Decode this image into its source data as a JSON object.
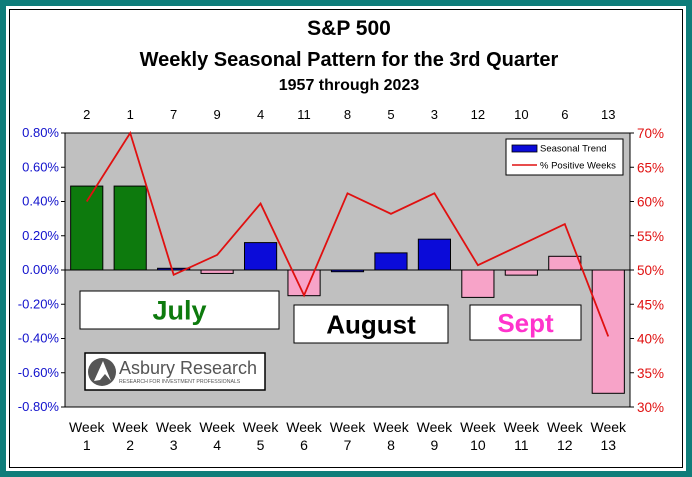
{
  "chart_data": {
    "type": "bar",
    "title": "S&P 500",
    "subtitle": "Weekly Seasonal Pattern for the 3rd Quarter",
    "subtitle2": "1957 through 2023",
    "categories": [
      "Week 1",
      "Week 2",
      "Week 3",
      "Week 4",
      "Week 5",
      "Week 6",
      "Week 7",
      "Week 8",
      "Week 9",
      "Week 10",
      "Week 11",
      "Week 12",
      "Week 13"
    ],
    "week_word": "Week",
    "week_numbers": [
      "1",
      "2",
      "3",
      "4",
      "5",
      "6",
      "7",
      "8",
      "9",
      "10",
      "11",
      "12",
      "13"
    ],
    "rank_labels": [
      "2",
      "1",
      "7",
      "9",
      "4",
      "11",
      "8",
      "5",
      "3",
      "12",
      "10",
      "6",
      "13"
    ],
    "series": [
      {
        "name": "Seasonal Trend",
        "axis": "left",
        "values": [
          0.49,
          0.49,
          0.01,
          -0.02,
          0.16,
          -0.15,
          -0.01,
          0.1,
          0.18,
          -0.16,
          -0.03,
          0.08,
          -0.72
        ]
      },
      {
        "name": "% Positive Weeks",
        "axis": "right",
        "type": "line",
        "values": [
          60,
          70,
          49.3,
          52.2,
          59.7,
          46.3,
          61.2,
          58.2,
          61.2,
          50.7,
          53.7,
          56.7,
          40.3
        ]
      }
    ],
    "bar_colors": [
      "#0d7a0d",
      "#0d7a0d",
      "#0b0bd9",
      "#f7a3c8",
      "#0b0bd9",
      "#f7a3c8",
      "#0b0bd9",
      "#0b0bd9",
      "#0b0bd9",
      "#f7a3c8",
      "#f7a3c8",
      "#f7a3c8",
      "#f7a3c8"
    ],
    "line_color": "#e01010",
    "plot_background": "#c0c0c0",
    "left_axis": {
      "ylim": [
        -0.8,
        0.8
      ],
      "ticks": [
        0.8,
        0.6,
        0.4,
        0.2,
        0.0,
        -0.2,
        -0.4,
        -0.6,
        -0.8
      ],
      "tick_labels": [
        "0.80%",
        "0.60%",
        "0.40%",
        "0.20%",
        "0.00%",
        "-0.20%",
        "-0.40%",
        "-0.60%",
        "-0.80%"
      ],
      "color": "#1111cc"
    },
    "right_axis": {
      "ylim": [
        30,
        70
      ],
      "ticks": [
        70,
        65,
        60,
        55,
        50,
        45,
        40,
        35,
        30
      ],
      "tick_labels": [
        "70%",
        "65%",
        "60%",
        "55%",
        "50%",
        "45%",
        "40%",
        "35%",
        "30%"
      ],
      "color": "#e01010"
    },
    "legend": {
      "placement": "top-right",
      "entries": [
        "Seasonal Trend",
        "% Positive Weeks"
      ]
    },
    "month_labels": [
      {
        "text": "July",
        "color": "#0d7a0d"
      },
      {
        "text": "August",
        "color": "#000000"
      },
      {
        "text": "Sept",
        "color": "#ff33cc"
      }
    ],
    "logo": {
      "name": "Asbury Research",
      "tagline": "RESEARCH FOR INVESTMENT PROFESSIONALS"
    }
  }
}
